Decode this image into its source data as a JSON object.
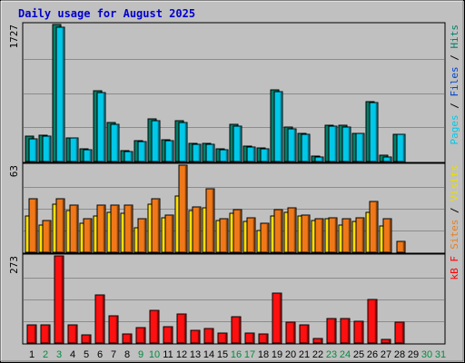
{
  "chart_data": {
    "type": "bar",
    "title": "Daily usage for August 2025",
    "days": [
      "1",
      "2",
      "3",
      "4",
      "5",
      "6",
      "7",
      "8",
      "9",
      "10",
      "11",
      "12",
      "13",
      "14",
      "15",
      "16",
      "17",
      "18",
      "19",
      "20",
      "21",
      "22",
      "23",
      "24",
      "25",
      "26",
      "27",
      "28",
      "29",
      "30",
      "31"
    ],
    "weekend_days": [
      "2",
      "3",
      "9",
      "10",
      "16",
      "17",
      "23",
      "24",
      "30",
      "31"
    ],
    "panels": [
      {
        "id": "hits",
        "ymax_label": "1727",
        "ymax": 1727,
        "legend": [
          {
            "text": "Pages",
            "color": "#00c8e8"
          },
          {
            "text": " / ",
            "color": "#000000"
          },
          {
            "text": "Files",
            "color": "#0044cc"
          },
          {
            "text": " / ",
            "color": "#000000"
          },
          {
            "text": "Hits",
            "color": "#00806a"
          }
        ],
        "series": [
          {
            "name": "Hits",
            "color": "#00806a",
            "values": [
              320,
              330,
              1727,
              300,
              160,
              890,
              490,
              140,
              260,
              540,
              270,
              510,
              230,
              230,
              160,
              470,
              190,
              170,
              900,
              430,
              360,
              70,
              460,
              460,
              360,
              760,
              80,
              340,
              0,
              0,
              0
            ]
          },
          {
            "name": "Files",
            "color": "#00c8e8",
            "values": [
              290,
              320,
              1690,
              300,
              150,
              870,
              470,
              130,
              250,
              520,
              260,
              490,
              220,
              220,
              150,
              450,
              180,
              160,
              880,
              410,
              340,
              60,
              450,
              440,
              350,
              740,
              60,
              340,
              0,
              0,
              0
            ]
          }
        ]
      },
      {
        "id": "visits",
        "ymax_label": "63",
        "ymax": 63,
        "legend": [
          {
            "text": "Sites",
            "color": "#e88020"
          },
          {
            "text": " / ",
            "color": "#000000"
          },
          {
            "text": "Visits",
            "color": "#e8e000"
          }
        ],
        "series": [
          {
            "name": "Visits",
            "color": "#ffe000",
            "values": [
              26,
              20,
              35,
              30,
              21,
              26,
              29,
              28,
              18,
              35,
              25,
              41,
              30,
              32,
              23,
              28,
              22,
              16,
              26,
              29,
              26,
              23,
              24,
              20,
              22,
              29,
              19,
              0,
              0,
              0,
              0
            ]
          },
          {
            "name": "Sites",
            "color": "#f07818",
            "values": [
              39,
              23,
              39,
              34,
              24,
              34,
              34,
              34,
              24,
              39,
              27,
              63,
              33,
              46,
              24,
              31,
              25,
              21,
              31,
              32,
              27,
              24,
              25,
              24,
              25,
              37,
              24,
              8,
              0,
              0,
              0
            ]
          }
        ]
      },
      {
        "id": "kbf",
        "ymax_label": "273",
        "ymax": 273,
        "legend": [
          {
            "text": "kB F",
            "color": "#ff0000"
          }
        ],
        "series": [
          {
            "name": "kB F",
            "color": "#ff1010",
            "values": [
              57,
              58,
              273,
              56,
              27,
              151,
              86,
              29,
              49,
              103,
              52,
              90,
              41,
              45,
              30,
              83,
              31,
              29,
              155,
              66,
              56,
              14,
              77,
              77,
              68,
              137,
              12,
              64,
              0,
              0,
              0
            ]
          }
        ]
      }
    ]
  }
}
